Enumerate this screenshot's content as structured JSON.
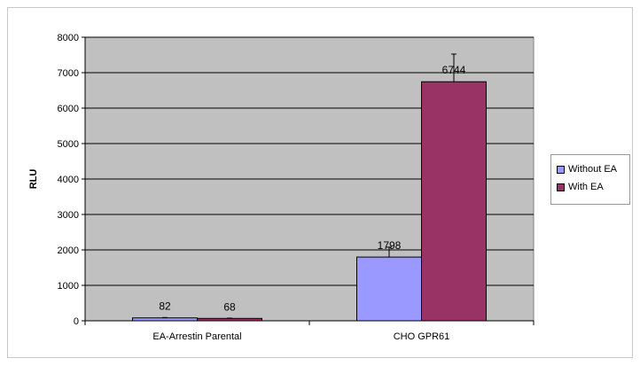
{
  "chart_data": {
    "type": "bar",
    "categories": [
      "EA-Arrestin Parental",
      "CHO GPR61"
    ],
    "series": [
      {
        "name": "Without EA",
        "values": [
          82,
          1798
        ],
        "errors": [
          10,
          280
        ],
        "color": "#9999ff"
      },
      {
        "name": "With EA",
        "values": [
          68,
          6744
        ],
        "errors": [
          8,
          780
        ],
        "color": "#993366"
      }
    ],
    "data_labels": [
      [
        "82",
        "1798"
      ],
      [
        "68",
        "6744"
      ]
    ],
    "ylabel": "RLU",
    "xlabel": "",
    "title": "",
    "ylim": [
      0,
      8000
    ],
    "yticks": [
      0,
      1000,
      2000,
      3000,
      4000,
      5000,
      6000,
      7000,
      8000
    ],
    "grid": true,
    "plot_background": "#c0c0c0",
    "legend_position": "right"
  }
}
